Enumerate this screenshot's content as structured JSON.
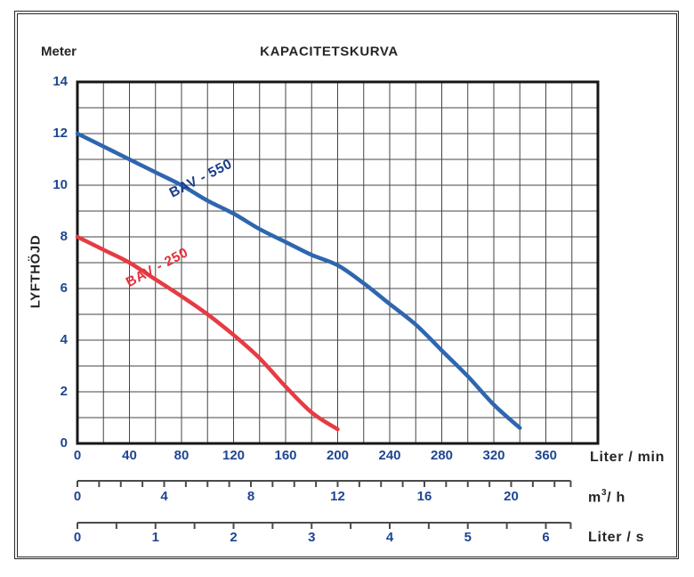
{
  "header": {
    "title": "KAPACITETSKURVA",
    "y_unit": "Meter"
  },
  "chart_data": {
    "type": "line",
    "title": "KAPACITETSKURVA",
    "grid": "on",
    "y_axis": {
      "unit": "Meter",
      "label": "LYFTHÖJD",
      "min": 0,
      "max": 14,
      "grid_step": 1,
      "label_step": 2,
      "tick_labels": [
        "0",
        "2",
        "4",
        "6",
        "8",
        "10",
        "12",
        "14"
      ]
    },
    "x_axis_primary": {
      "label": "Liter / min",
      "min": 0,
      "max": 400,
      "grid_step": 20,
      "label_step": 40,
      "labeled_max": 360,
      "tick_labels": [
        "0",
        "40",
        "80",
        "120",
        "160",
        "200",
        "240",
        "280",
        "320",
        "360"
      ]
    },
    "x_axis_m3h": {
      "label_base": "m",
      "label_sup": "3",
      "label_rest": "/ h",
      "liters_per_min_per_unit": 16.6667,
      "tick_step": 1,
      "label_step": 4,
      "labeled_max": 20,
      "axis_end_liters_min": 379.1,
      "tick_labels": [
        "0",
        "4",
        "8",
        "12",
        "16",
        "20"
      ]
    },
    "x_axis_liters_s": {
      "label": "Liter / s",
      "liters_per_min_per_unit": 60,
      "tick_step": 0.5,
      "label_step": 1,
      "labeled_max": 6,
      "axis_end_liters_min": 379.1,
      "tick_labels": [
        "0",
        "1",
        "2",
        "3",
        "4",
        "5",
        "6"
      ]
    },
    "series": [
      {
        "name": "BAV - 550",
        "color": "#2e66b0",
        "label_color": "#1a3c8a",
        "label_pos": {
          "x_liters_min": 95,
          "y_m": 10.25,
          "angle_deg": -27
        },
        "points_liters_min_vs_m": [
          [
            0,
            12
          ],
          [
            20,
            11.5
          ],
          [
            40,
            11
          ],
          [
            60,
            10.5
          ],
          [
            80,
            10
          ],
          [
            100,
            9.4
          ],
          [
            120,
            8.9
          ],
          [
            140,
            8.3
          ],
          [
            160,
            7.8
          ],
          [
            180,
            7.3
          ],
          [
            200,
            6.9
          ],
          [
            220,
            6.2
          ],
          [
            240,
            5.4
          ],
          [
            260,
            4.6
          ],
          [
            280,
            3.6
          ],
          [
            300,
            2.6
          ],
          [
            320,
            1.5
          ],
          [
            340,
            0.6
          ]
        ]
      },
      {
        "name": "BAV - 250",
        "color": "#e73b43",
        "label_color": "#e3313c",
        "label_pos": {
          "x_liters_min": 61.5,
          "y_m": 6.8,
          "angle_deg": -28
        },
        "points_liters_min_vs_m": [
          [
            0,
            8
          ],
          [
            20,
            7.5
          ],
          [
            40,
            7
          ],
          [
            60,
            6.35
          ],
          [
            80,
            5.7
          ],
          [
            100,
            5
          ],
          [
            120,
            4.2
          ],
          [
            140,
            3.3
          ],
          [
            160,
            2.2
          ],
          [
            180,
            1.2
          ],
          [
            200,
            0.55
          ]
        ]
      }
    ]
  }
}
